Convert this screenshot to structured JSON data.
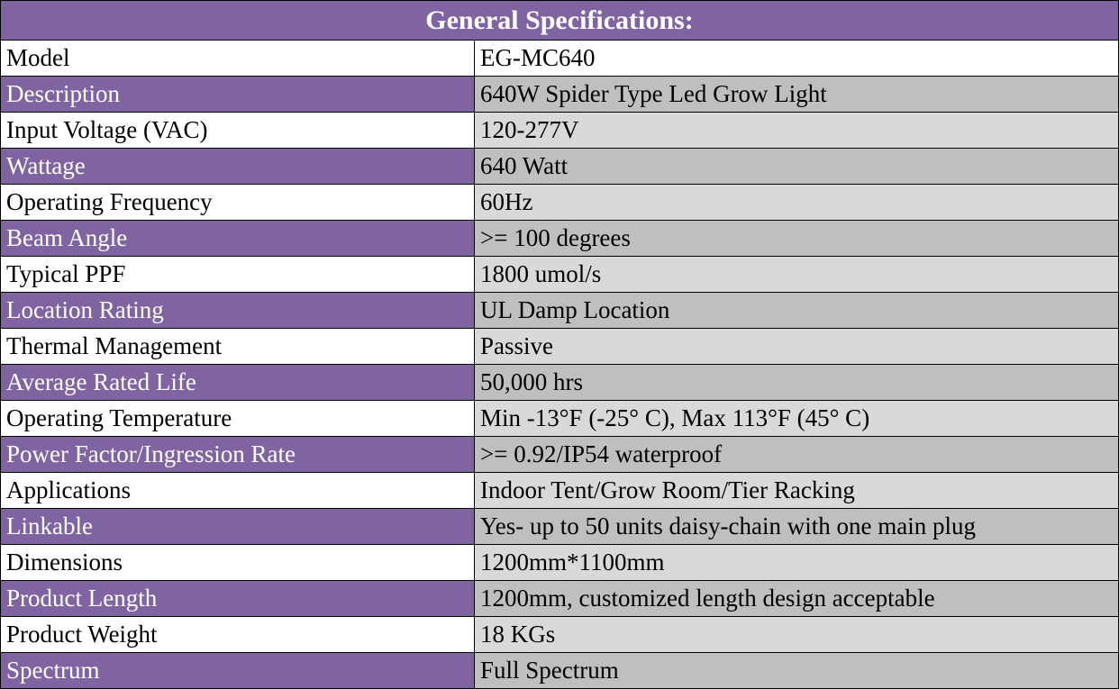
{
  "title": "General Specifications:",
  "colors": {
    "accent": "#8064A2",
    "row_gray_dark": "#BFBFBF",
    "row_gray_light": "#D9D9D9"
  },
  "rows": [
    {
      "label": "Model",
      "value": "EG-MC640"
    },
    {
      "label": "Description",
      "value": "640W Spider Type Led Grow Light"
    },
    {
      "label": "Input Voltage (VAC)",
      "value": "120-277V"
    },
    {
      "label": "Wattage",
      "value": "640 Watt"
    },
    {
      "label": "Operating Frequency",
      "value": "60Hz"
    },
    {
      "label": "Beam Angle",
      "value": ">= 100 degrees"
    },
    {
      "label": "Typical PPF",
      "value": "1800 umol/s"
    },
    {
      "label": "Location Rating",
      "value": "UL Damp Location"
    },
    {
      "label": "Thermal Management",
      "value": "Passive"
    },
    {
      "label": "Average Rated Life",
      "value": "50,000 hrs"
    },
    {
      "label": "Operating Temperature",
      "value": "Min -13°F (-25° C), Max 113°F (45° C)"
    },
    {
      "label": "Power Factor/Ingression Rate",
      "value": ">= 0.92/IP54 waterproof"
    },
    {
      "label": "Applications",
      "value": "Indoor Tent/Grow Room/Tier Racking"
    },
    {
      "label": "Linkable",
      "value": "Yes- up to 50 units daisy-chain with one main plug"
    },
    {
      "label": "Dimensions",
      "value": "1200mm*1100mm"
    },
    {
      "label": "Product Length",
      "value": "1200mm, customized length design acceptable"
    },
    {
      "label": "Product Weight",
      "value": "18 KGs"
    },
    {
      "label": "Spectrum",
      "value": "Full Spectrum"
    }
  ]
}
